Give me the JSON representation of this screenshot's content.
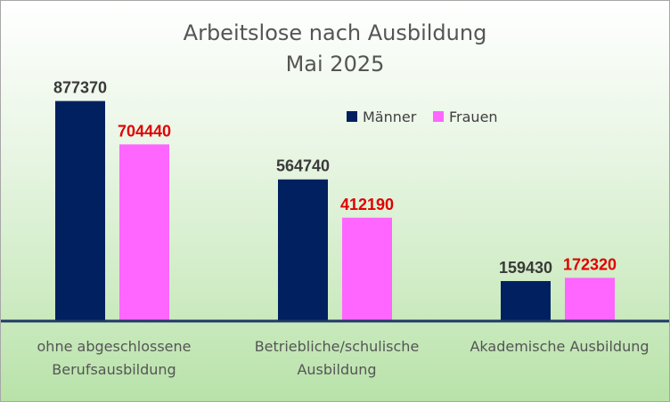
{
  "chart_data": {
    "type": "bar",
    "title": "Arbeitslose nach Ausbildung",
    "subtitle": "Mai 2025",
    "categories": [
      [
        "ohne abgeschlossene",
        "Berufsausbildung"
      ],
      [
        "Betriebliche/schulische",
        "Ausbildung"
      ],
      [
        "Akademische Ausbildung"
      ]
    ],
    "series": [
      {
        "name": "Männer",
        "values": [
          877370,
          564740,
          159430
        ],
        "color": "#002060",
        "label_color": "#3a3a3a"
      },
      {
        "name": "Frauen",
        "values": [
          704440,
          412190,
          172320
        ],
        "color": "#ff66ff",
        "label_color": "#e00000"
      }
    ],
    "ylim": [
      0,
      1000000
    ],
    "grid": false,
    "legend": "top-right",
    "data_labels": true,
    "axis_color": "#1f3864"
  }
}
